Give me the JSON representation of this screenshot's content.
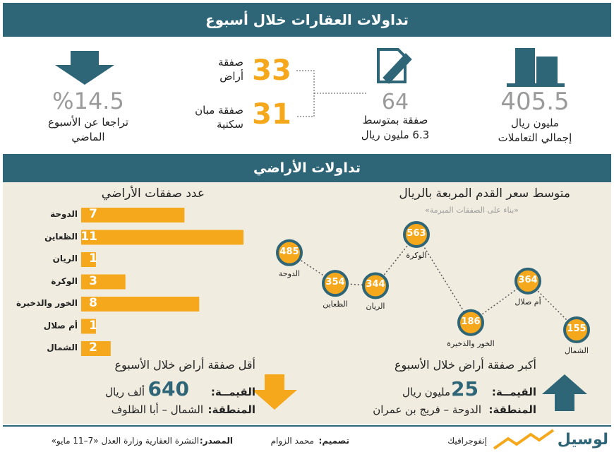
{
  "header": {
    "title": "تداولات العقارات خلال أسبوع"
  },
  "summary": {
    "total": {
      "value": "405.5",
      "label": [
        "مليون ريال",
        "إجمالي التعاملات"
      ]
    },
    "deals": {
      "value": "64",
      "label": [
        "صفقة بمتوسط",
        "6.3 مليون ريال"
      ]
    },
    "land": {
      "value": "33",
      "label": [
        "صفقة",
        "أراض"
      ]
    },
    "residential": {
      "value": "31",
      "label": [
        "صفقة مبان",
        "سكنية"
      ]
    },
    "decline": {
      "value": "%14.5",
      "label": [
        "تراجعا عن الأسبوع",
        "الماضي"
      ]
    }
  },
  "section": {
    "title": "تداولات الأراضي"
  },
  "bar_chart": {
    "title": "عدد صفقات الأراضي",
    "categories": [
      "الدوحة",
      "الظعاين",
      "الريان",
      "الوكرة",
      "الخور والذخيرة",
      "أم صلال",
      "الشمال"
    ],
    "values": [
      7,
      11,
      1,
      3,
      8,
      1,
      2
    ],
    "color": "#f5a81c"
  },
  "line_chart": {
    "title": "متوسط سعر القدم المربعة بالريال",
    "subtitle": "«بناء على الصفقات المبرمة»",
    "categories": [
      "الدوحة",
      "الظعاين",
      "الريان",
      "الوكرة",
      "الخور والذخيرة",
      "أم صلال",
      "الشمال"
    ],
    "values": [
      485,
      354,
      344,
      563,
      186,
      364,
      155
    ]
  },
  "smallest": {
    "title": "أقل صفقة أراض خلال الأسبوع",
    "value_label": "القيمــة:",
    "value": "640",
    "unit": "ألف ريال",
    "region_label": "المنطقة:",
    "region": "الشمال – أبا الظلوف"
  },
  "largest": {
    "title": "أكبر صفقة أراض خلال الأسبوع",
    "value_label": "القيمــة:",
    "value": "25",
    "unit": "مليون ريال",
    "region_label": "المنطقة:",
    "region": "الدوحة – فريج بن عمران"
  },
  "footer": {
    "source_label": "المصدر:",
    "source": "النشرة العقارية وزارة العدل «7–11 مايو»",
    "design_label": "تصميم:",
    "designer": "محمد الزوام",
    "tag": "إنفوجرافيك",
    "brand": "لوسيل"
  }
}
